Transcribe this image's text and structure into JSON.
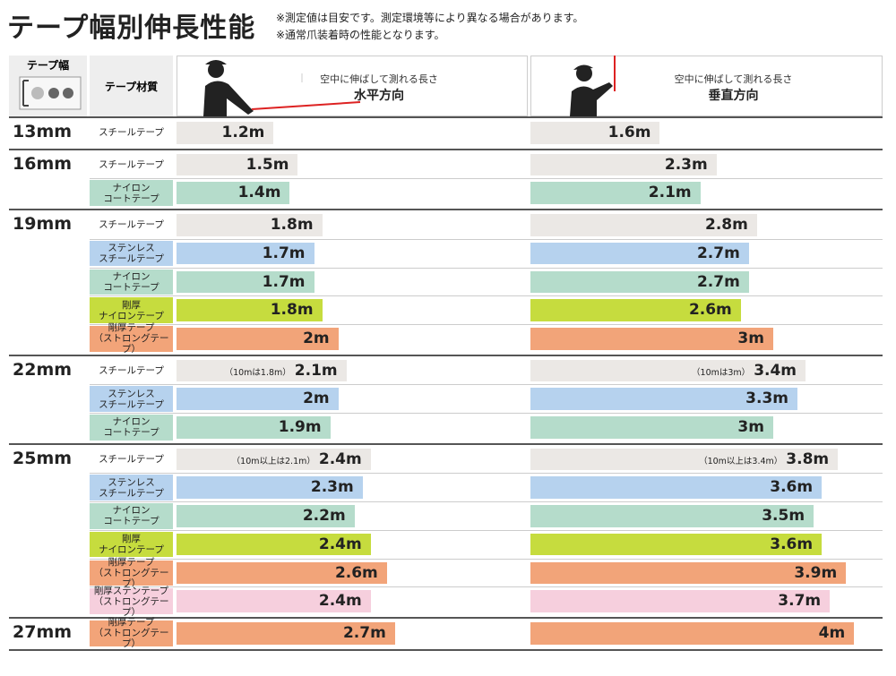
{
  "header": {
    "title": "テープ幅別伸長性能",
    "notes": [
      "※測定値は目安です。測定環境等により異なる場合があります。",
      "※通常爪装着時の性能となります。"
    ]
  },
  "table": {
    "columns": {
      "width": "テープ幅",
      "material": "テープ材質",
      "horizontal": {
        "caption": "空中に伸ばして測れる長さ",
        "label": "水平方向"
      },
      "vertical": {
        "caption": "空中に伸ばして測れる長さ",
        "label": "垂直方向"
      }
    },
    "groups": [
      {
        "width": "13mm",
        "rows": [
          {
            "material": [
              "スチールテープ"
            ],
            "color": "#ebe8e5",
            "horizontal": {
              "value": 1.2,
              "label": "1.2m"
            },
            "vertical": {
              "value": 1.6,
              "label": "1.6m"
            }
          }
        ]
      },
      {
        "width": "16mm",
        "rows": [
          {
            "material": [
              "スチールテープ"
            ],
            "color": "#ebe8e5",
            "horizontal": {
              "value": 1.5,
              "label": "1.5m"
            },
            "vertical": {
              "value": 2.3,
              "label": "2.3m"
            }
          },
          {
            "material": [
              "ナイロン",
              "コートテープ"
            ],
            "color": "#b5dccb",
            "horizontal": {
              "value": 1.4,
              "label": "1.4m"
            },
            "vertical": {
              "value": 2.1,
              "label": "2.1m"
            }
          }
        ]
      },
      {
        "width": "19mm",
        "rows": [
          {
            "material": [
              "スチールテープ"
            ],
            "color": "#ebe8e5",
            "horizontal": {
              "value": 1.8,
              "label": "1.8m"
            },
            "vertical": {
              "value": 2.8,
              "label": "2.8m"
            }
          },
          {
            "material": [
              "ステンレス",
              "スチールテープ"
            ],
            "color": "#b6d2ee",
            "horizontal": {
              "value": 1.7,
              "label": "1.7m"
            },
            "vertical": {
              "value": 2.7,
              "label": "2.7m"
            }
          },
          {
            "material": [
              "ナイロン",
              "コートテープ"
            ],
            "color": "#b5dccb",
            "horizontal": {
              "value": 1.7,
              "label": "1.7m"
            },
            "vertical": {
              "value": 2.7,
              "label": "2.7m"
            }
          },
          {
            "material": [
              "剛厚",
              "ナイロンテープ"
            ],
            "color": "#c6dc3e",
            "horizontal": {
              "value": 1.8,
              "label": "1.8m"
            },
            "vertical": {
              "value": 2.6,
              "label": "2.6m"
            }
          },
          {
            "material": [
              "剛厚テープ",
              "（ストロングテープ）"
            ],
            "color": "#f2a479",
            "horizontal": {
              "value": 2,
              "label": "2m"
            },
            "vertical": {
              "value": 3,
              "label": "3m"
            }
          }
        ]
      },
      {
        "width": "22mm",
        "rows": [
          {
            "material": [
              "スチールテープ"
            ],
            "color": "#ebe8e5",
            "horizontal": {
              "value": 2.1,
              "label": "2.1m",
              "note": "（10mは1.8m）"
            },
            "vertical": {
              "value": 3.4,
              "label": "3.4m",
              "note": "（10mは3m）"
            }
          },
          {
            "material": [
              "ステンレス",
              "スチールテープ"
            ],
            "color": "#b6d2ee",
            "horizontal": {
              "value": 2,
              "label": "2m"
            },
            "vertical": {
              "value": 3.3,
              "label": "3.3m"
            }
          },
          {
            "material": [
              "ナイロン",
              "コートテープ"
            ],
            "color": "#b5dccb",
            "horizontal": {
              "value": 1.9,
              "label": "1.9m"
            },
            "vertical": {
              "value": 3,
              "label": "3m"
            }
          }
        ]
      },
      {
        "width": "25mm",
        "rows": [
          {
            "material": [
              "スチールテープ"
            ],
            "color": "#ebe8e5",
            "horizontal": {
              "value": 2.4,
              "label": "2.4m",
              "note": "（10m以上は2.1m）"
            },
            "vertical": {
              "value": 3.8,
              "label": "3.8m",
              "note": "（10m以上は3.4m）"
            }
          },
          {
            "material": [
              "ステンレス",
              "スチールテープ"
            ],
            "color": "#b6d2ee",
            "horizontal": {
              "value": 2.3,
              "label": "2.3m"
            },
            "vertical": {
              "value": 3.6,
              "label": "3.6m"
            }
          },
          {
            "material": [
              "ナイロン",
              "コートテープ"
            ],
            "color": "#b5dccb",
            "horizontal": {
              "value": 2.2,
              "label": "2.2m"
            },
            "vertical": {
              "value": 3.5,
              "label": "3.5m"
            }
          },
          {
            "material": [
              "剛厚",
              "ナイロンテープ"
            ],
            "color": "#c6dc3e",
            "horizontal": {
              "value": 2.4,
              "label": "2.4m"
            },
            "vertical": {
              "value": 3.6,
              "label": "3.6m"
            }
          },
          {
            "material": [
              "剛厚テープ",
              "（ストロングテープ）"
            ],
            "color": "#f2a479",
            "horizontal": {
              "value": 2.6,
              "label": "2.6m"
            },
            "vertical": {
              "value": 3.9,
              "label": "3.9m"
            }
          },
          {
            "material": [
              "剛厚ステンテープ",
              "（ストロングテープ）"
            ],
            "color": "#f6cfdd",
            "horizontal": {
              "value": 2.4,
              "label": "2.4m"
            },
            "vertical": {
              "value": 3.7,
              "label": "3.7m"
            }
          }
        ]
      },
      {
        "width": "27mm",
        "rows": [
          {
            "material": [
              "剛厚テープ",
              "（ストロングテープ）"
            ],
            "color": "#f2a479",
            "horizontal": {
              "value": 2.7,
              "label": "2.7m"
            },
            "vertical": {
              "value": 4,
              "label": "4m"
            }
          }
        ]
      }
    ]
  }
}
